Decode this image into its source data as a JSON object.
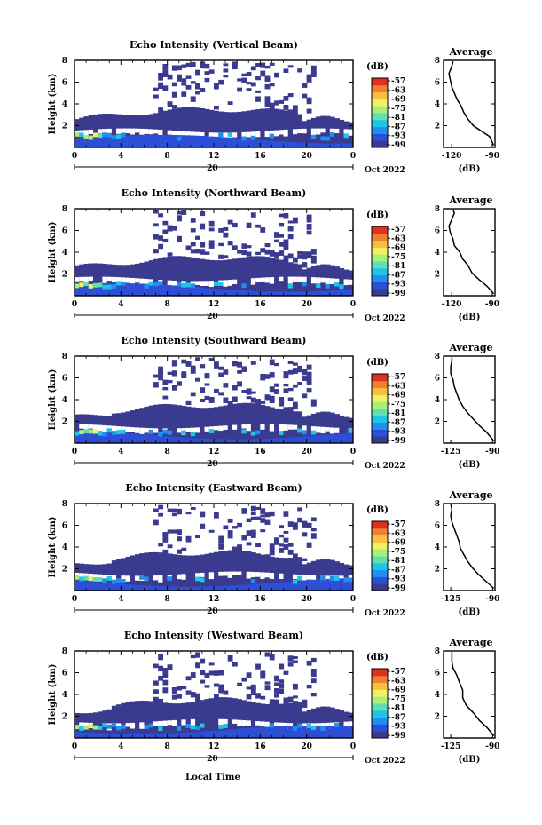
{
  "figure": {
    "date_label": "Oct 2022",
    "xlabel_bottom": "Local Time",
    "colorbar_unit": "(dB)",
    "colorbar_ticks": [
      "-57",
      "-63",
      "-69",
      "-75",
      "-81",
      "-87",
      "-93",
      "-99"
    ],
    "colorbar_colors": [
      "#3a3b8f",
      "#2d4fd8",
      "#1f8ff0",
      "#22c4e6",
      "#5fe0b0",
      "#a8f07a",
      "#f0f060",
      "#f8c040",
      "#f08030",
      "#e03020"
    ],
    "avg_title": "Average",
    "avg_xlabel": "(dB)",
    "main_ylabel": "Height (km)",
    "day_label": "20"
  },
  "chart_data": [
    {
      "type": "heatmap",
      "title": "Echo Intensity (Vertical Beam)",
      "ylabel": "Height (km)",
      "x_ticks": [
        "0",
        "4",
        "8",
        "12",
        "16",
        "20",
        "0"
      ],
      "y_ticks": [
        "2",
        "4",
        "6",
        "8"
      ],
      "xlim": [
        0,
        24
      ],
      "ylim": [
        0,
        8
      ],
      "colorbar": {
        "unit": "(dB)",
        "range": [
          -99,
          -57
        ]
      },
      "average": {
        "title": "Average",
        "xlabel": "(dB)",
        "x_ticks": [
          "-120",
          "-90"
        ],
        "y_ticks": [
          "2",
          "4",
          "6",
          "8"
        ],
        "xlim": [
          -126,
          -88
        ],
        "ylim": [
          0,
          8
        ],
        "profile": [
          [
            -89,
            0.2
          ],
          [
            -92,
            1.0
          ],
          [
            -98,
            1.5
          ],
          [
            -104,
            2.0
          ],
          [
            -108,
            2.6
          ],
          [
            -111,
            3.2
          ],
          [
            -113,
            3.8
          ],
          [
            -116,
            4.4
          ],
          [
            -118,
            5.0
          ],
          [
            -120,
            5.6
          ],
          [
            -121,
            6.2
          ],
          [
            -122,
            6.8
          ],
          [
            -120,
            7.4
          ],
          [
            -119,
            7.9
          ]
        ]
      }
    },
    {
      "type": "heatmap",
      "title": "Echo Intensity (Northward Beam)",
      "ylabel": "Height (km)",
      "x_ticks": [
        "0",
        "4",
        "8",
        "12",
        "16",
        "20",
        "0"
      ],
      "y_ticks": [
        "2",
        "4",
        "6",
        "8"
      ],
      "xlim": [
        0,
        24
      ],
      "ylim": [
        0,
        8
      ],
      "colorbar": {
        "unit": "(dB)",
        "range": [
          -99,
          -57
        ]
      },
      "average": {
        "title": "Average",
        "xlabel": "(dB)",
        "x_ticks": [
          "-120",
          "-90"
        ],
        "y_ticks": [
          "2",
          "4",
          "6",
          "8"
        ],
        "xlim": [
          -126,
          -88
        ],
        "ylim": [
          0,
          8
        ],
        "profile": [
          [
            -89,
            0.2
          ],
          [
            -94,
            0.9
          ],
          [
            -100,
            1.5
          ],
          [
            -105,
            2.1
          ],
          [
            -108,
            2.8
          ],
          [
            -112,
            3.4
          ],
          [
            -114,
            4.0
          ],
          [
            -118,
            4.6
          ],
          [
            -119,
            5.2
          ],
          [
            -121,
            5.8
          ],
          [
            -122,
            6.4
          ],
          [
            -120,
            7.0
          ],
          [
            -118,
            7.6
          ],
          [
            -119,
            7.9
          ]
        ]
      }
    },
    {
      "type": "heatmap",
      "title": "Echo Intensity (Southward Beam)",
      "ylabel": "Height (km)",
      "x_ticks": [
        "0",
        "4",
        "8",
        "12",
        "16",
        "20",
        "0"
      ],
      "y_ticks": [
        "2",
        "4",
        "6",
        "8"
      ],
      "xlim": [
        0,
        24
      ],
      "ylim": [
        0,
        8
      ],
      "colorbar": {
        "unit": "(dB)",
        "range": [
          -99,
          -57
        ]
      },
      "average": {
        "title": "Average",
        "xlabel": "(dB)",
        "x_ticks": [
          "-125",
          "-90"
        ],
        "y_ticks": [
          "2",
          "4",
          "6",
          "8"
        ],
        "xlim": [
          -131,
          -88
        ],
        "ylim": [
          0,
          8
        ],
        "profile": [
          [
            -89,
            0.2
          ],
          [
            -95,
            1.0
          ],
          [
            -101,
            1.6
          ],
          [
            -106,
            2.2
          ],
          [
            -111,
            2.8
          ],
          [
            -115,
            3.4
          ],
          [
            -118,
            4.0
          ],
          [
            -120,
            4.6
          ],
          [
            -122,
            5.2
          ],
          [
            -123,
            5.8
          ],
          [
            -125,
            6.4
          ],
          [
            -125,
            7.0
          ],
          [
            -124,
            7.6
          ],
          [
            -124,
            7.9
          ]
        ]
      }
    },
    {
      "type": "heatmap",
      "title": "Echo Intensity (Eastward Beam)",
      "ylabel": "Height (km)",
      "x_ticks": [
        "0",
        "4",
        "8",
        "12",
        "16",
        "20",
        "0"
      ],
      "y_ticks": [
        "2",
        "4",
        "6",
        "8"
      ],
      "xlim": [
        0,
        24
      ],
      "ylim": [
        0,
        8
      ],
      "colorbar": {
        "unit": "(dB)",
        "range": [
          -99,
          -57
        ]
      },
      "average": {
        "title": "Average",
        "xlabel": "(dB)",
        "x_ticks": [
          "-125",
          "-90"
        ],
        "y_ticks": [
          "2",
          "4",
          "6",
          "8"
        ],
        "xlim": [
          -131,
          -88
        ],
        "ylim": [
          0,
          8
        ],
        "profile": [
          [
            -89,
            0.2
          ],
          [
            -96,
            0.9
          ],
          [
            -102,
            1.5
          ],
          [
            -107,
            2.1
          ],
          [
            -111,
            2.7
          ],
          [
            -114,
            3.3
          ],
          [
            -117,
            3.9
          ],
          [
            -118,
            4.5
          ],
          [
            -120,
            5.1
          ],
          [
            -122,
            5.7
          ],
          [
            -124,
            6.3
          ],
          [
            -125,
            6.9
          ],
          [
            -124,
            7.5
          ],
          [
            -125,
            7.9
          ]
        ]
      }
    },
    {
      "type": "heatmap",
      "title": "Echo Intensity (Westward Beam)",
      "ylabel": "Height (km)",
      "xlabel": "Local Time",
      "x_ticks": [
        "0",
        "4",
        "8",
        "12",
        "16",
        "20",
        "0"
      ],
      "y_ticks": [
        "2",
        "4",
        "6",
        "8"
      ],
      "xlim": [
        0,
        24
      ],
      "ylim": [
        0,
        8
      ],
      "colorbar": {
        "unit": "(dB)",
        "range": [
          -99,
          -57
        ]
      },
      "average": {
        "title": "Average",
        "xlabel": "(dB)",
        "x_ticks": [
          "-125",
          "-90"
        ],
        "y_ticks": [
          "2",
          "4",
          "6",
          "8"
        ],
        "xlim": [
          -131,
          -88
        ],
        "ylim": [
          0,
          8
        ],
        "profile": [
          [
            -89,
            0.2
          ],
          [
            -95,
            1.0
          ],
          [
            -101,
            1.6
          ],
          [
            -106,
            2.3
          ],
          [
            -112,
            3.0
          ],
          [
            -115,
            3.7
          ],
          [
            -115,
            4.4
          ],
          [
            -118,
            5.2
          ],
          [
            -120,
            5.8
          ],
          [
            -123,
            6.4
          ],
          [
            -124,
            7.0
          ],
          [
            -124,
            7.6
          ],
          [
            -124,
            7.9
          ]
        ]
      }
    }
  ]
}
